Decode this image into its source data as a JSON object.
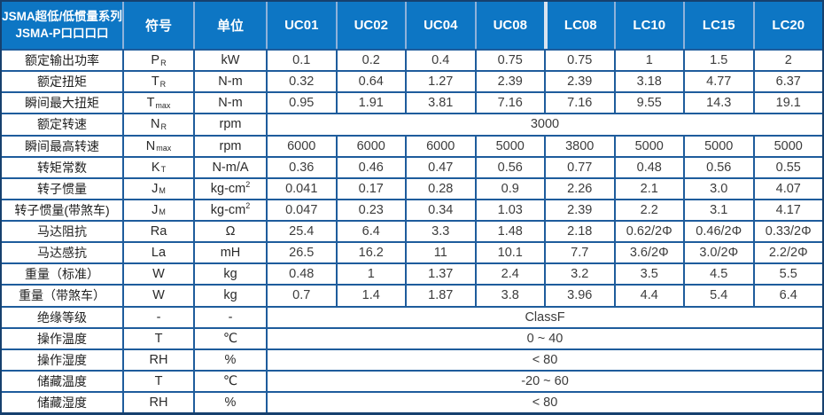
{
  "header": {
    "title_line1": "JSMA超低/低惯量系列",
    "title_line2": "JSMA-P口口口口",
    "symbol_col": "符号",
    "unit_col": "单位",
    "models": [
      "UC01",
      "UC02",
      "UC04",
      "UC08",
      "LC08",
      "LC10",
      "LC15",
      "LC20"
    ]
  },
  "colors": {
    "header_bg": "#0d76c4",
    "grid_line": "#1e5c9c",
    "outer_border": "#16406e",
    "header_divider": "#8fb2da",
    "group_divider": "#d9e3ef",
    "value_text": "#3c3c3c"
  },
  "rows": [
    {
      "label": "额定输出功率",
      "sym": "P",
      "sub": "R",
      "unit": "kW",
      "values": [
        "0.1",
        "0.2",
        "0.4",
        "0.75",
        "0.75",
        "1",
        "1.5",
        "2"
      ]
    },
    {
      "label": "额定扭矩",
      "sym": "T",
      "sub": "R",
      "unit": "N-m",
      "values": [
        "0.32",
        "0.64",
        "1.27",
        "2.39",
        "2.39",
        "3.18",
        "4.77",
        "6.37"
      ]
    },
    {
      "label": "瞬间最大扭矩",
      "sym": "T",
      "sub": "max",
      "unit": "N-m",
      "values": [
        "0.95",
        "1.91",
        "3.81",
        "7.16",
        "7.16",
        "9.55",
        "14.3",
        "19.1"
      ]
    },
    {
      "label": "额定转速",
      "sym": "N",
      "sub": "R",
      "unit": "rpm",
      "span": "3000"
    },
    {
      "label": "瞬间最高转速",
      "sym": "N",
      "sub": "max",
      "unit": "rpm",
      "values": [
        "6000",
        "6000",
        "6000",
        "5000",
        "3800",
        "5000",
        "5000",
        "5000"
      ]
    },
    {
      "label": "转矩常数",
      "sym": "K",
      "sub": "T",
      "unit": "N-m/A",
      "values": [
        "0.36",
        "0.46",
        "0.47",
        "0.56",
        "0.77",
        "0.48",
        "0.56",
        "0.55"
      ]
    },
    {
      "label": "转子惯量",
      "sym": "J",
      "sub": "M",
      "unit": "kg-cm",
      "unit_sup": "2",
      "values": [
        "0.041",
        "0.17",
        "0.28",
        "0.9",
        "2.26",
        "2.1",
        "3.0",
        "4.07"
      ]
    },
    {
      "label": "转子惯量(带煞车)",
      "sym": "J",
      "sub": "M",
      "unit": "kg-cm",
      "unit_sup": "2",
      "values": [
        "0.047",
        "0.23",
        "0.34",
        "1.03",
        "2.39",
        "2.2",
        "3.1",
        "4.17"
      ]
    },
    {
      "label": "马达阻抗",
      "sym": "Ra",
      "unit": "Ω",
      "values": [
        "25.4",
        "6.4",
        "3.3",
        "1.48",
        "2.18",
        "0.62/2Φ",
        "0.46/2Φ",
        "0.33/2Φ"
      ]
    },
    {
      "label": "马达感抗",
      "sym": "La",
      "unit": "mH",
      "values": [
        "26.5",
        "16.2",
        "11",
        "10.1",
        "7.7",
        "3.6/2Φ",
        "3.0/2Φ",
        "2.2/2Φ"
      ]
    },
    {
      "label": "重量（标准）",
      "sym": "W",
      "unit": "kg",
      "values": [
        "0.48",
        "1",
        "1.37",
        "2.4",
        "3.2",
        "3.5",
        "4.5",
        "5.5"
      ]
    },
    {
      "label": "重量（带煞车）",
      "sym": "W",
      "unit": "kg",
      "values": [
        "0.7",
        "1.4",
        "1.87",
        "3.8",
        "3.96",
        "4.4",
        "5.4",
        "6.4"
      ]
    },
    {
      "label": "绝缘等级",
      "sym": "-",
      "unit": "-",
      "span": "ClassF"
    },
    {
      "label": "操作温度",
      "sym": "T",
      "unit": "℃",
      "span": "0 ~ 40"
    },
    {
      "label": "操作湿度",
      "sym": "RH",
      "unit": "%",
      "span": "< 80"
    },
    {
      "label": "储藏温度",
      "sym": "T",
      "unit": "℃",
      "span": "-20 ~ 60"
    },
    {
      "label": "储藏湿度",
      "sym": "RH",
      "unit": "%",
      "span": "< 80"
    }
  ]
}
